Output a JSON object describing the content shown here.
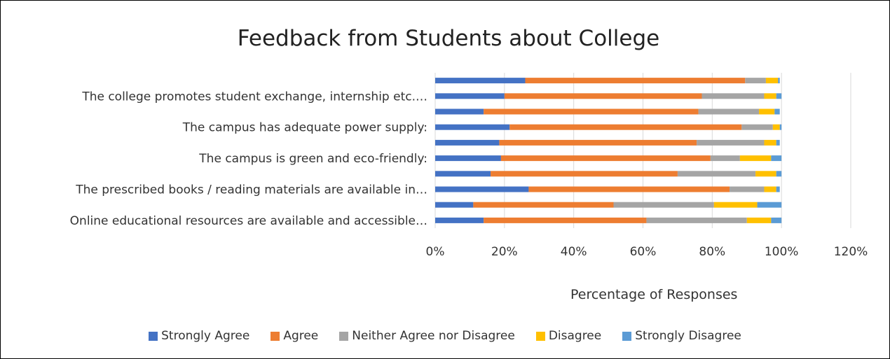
{
  "chart_data": {
    "type": "bar",
    "orientation": "horizontal",
    "stacked": true,
    "title": "Feedback from Students about College",
    "xlabel": "Percentage of Responses",
    "ylabel": "",
    "xlim": [
      0,
      120
    ],
    "x_ticks": [
      "0%",
      "20%",
      "40%",
      "60%",
      "80%",
      "100%",
      "120%"
    ],
    "grid": "vertical",
    "legend_position": "bottom",
    "categories": [
      "Online educational resources are available and accessible…",
      "",
      "The prescribed books / reading materials are available in…",
      "",
      "The campus is green and eco-friendly:",
      "",
      "The campus has adequate power supply:",
      "",
      "The college promotes student exchange, internship etc.…",
      ""
    ],
    "series": [
      {
        "name": "Strongly Agree",
        "color": "#4472C4",
        "values": [
          14,
          11,
          27,
          16,
          19,
          18.5,
          21.5,
          14,
          20,
          26
        ]
      },
      {
        "name": "Agree",
        "color": "#ED7D31",
        "values": [
          47,
          40.5,
          58,
          54,
          60.5,
          57,
          67,
          62,
          57,
          63.5
        ]
      },
      {
        "name": "Neither Agree nor Disagree",
        "color": "#A5A5A5",
        "values": [
          29,
          29,
          10,
          22.5,
          8.5,
          19.5,
          9,
          17.5,
          18,
          6
        ]
      },
      {
        "name": "Disagree",
        "color": "#FFC000",
        "values": [
          7,
          12.5,
          3.5,
          6,
          9,
          3.5,
          2,
          4.5,
          3.5,
          3.5
        ]
      },
      {
        "name": "Strongly Disagree",
        "color": "#5B9BD5",
        "values": [
          3,
          7,
          1,
          1.5,
          3,
          1,
          0.5,
          1.5,
          1.5,
          0.5
        ]
      }
    ]
  }
}
